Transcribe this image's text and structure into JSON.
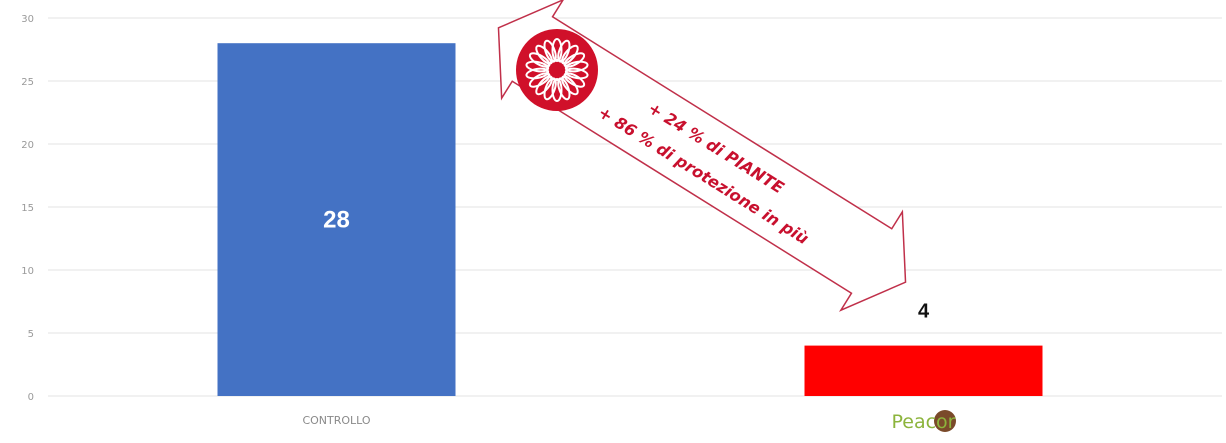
{
  "chart_data": {
    "type": "bar",
    "categories": [
      "CONTROLLO",
      "Peacor"
    ],
    "values": [
      28,
      4
    ],
    "bar_colors": [
      "#4472c4",
      "#ff0000"
    ],
    "ylim": [
      0,
      30
    ],
    "yticks": [
      0,
      5,
      10,
      15,
      20,
      25,
      30
    ],
    "grid": true,
    "xlabel": "",
    "ylabel": "",
    "annotations": [
      "+ 24 % di PIANTE",
      "+ 86 % di protezione in più"
    ]
  },
  "colors": {
    "annotation_text": "#c8102e",
    "badge": "#d0102a",
    "arrow_outline": "#c0304a",
    "logo_text": "#8cb43c",
    "logo_dot": "#7a4a2a",
    "value_label_inside": "#ffffff",
    "value_label_outside": "#111111"
  },
  "icons": {
    "badge": "sunflower-icon",
    "logo": "peacor-logo"
  }
}
